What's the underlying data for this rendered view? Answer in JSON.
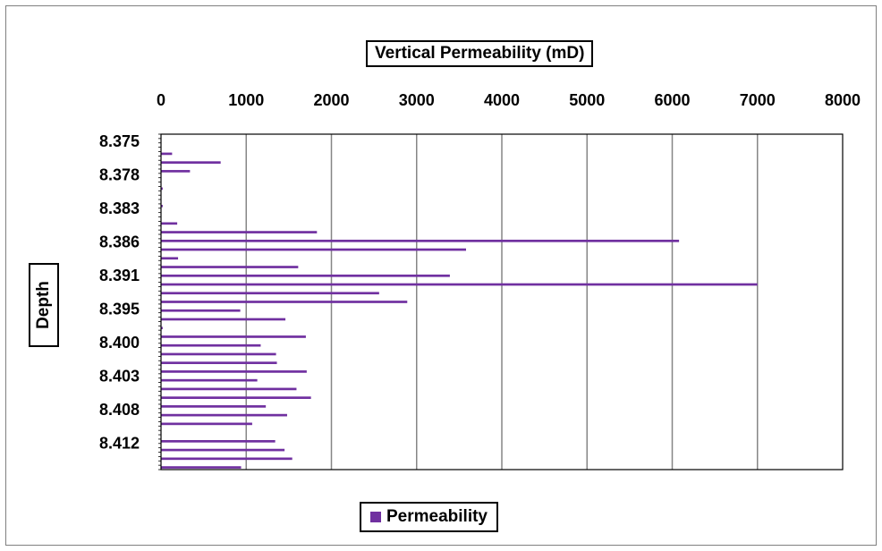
{
  "chart_data": {
    "type": "bar",
    "orientation": "horizontal",
    "xlabel": "Vertical Permeability (mD)",
    "ylabel": "Depth",
    "xlim": [
      0,
      8000
    ],
    "x_ticks": [
      "0",
      "1000",
      "2000",
      "3000",
      "4000",
      "5000",
      "6000",
      "7000",
      "8000"
    ],
    "x_axis_position": "top",
    "y_tick_labels": [
      "8.375",
      "8.378",
      "8.383",
      "8.386",
      "8.391",
      "8.395",
      "8.400",
      "8.403",
      "8.408",
      "8.412"
    ],
    "y_order": "top-to-bottom",
    "grid": {
      "vertical": true,
      "horizontal": false
    },
    "legend": {
      "position": "bottom",
      "entries": [
        "Permeability"
      ]
    },
    "series": [
      {
        "name": "Permeability",
        "color": "#7030a0",
        "values": [
          0,
          0,
          0,
          0,
          130,
          0,
          700,
          0,
          340,
          0,
          0,
          0,
          20,
          0,
          0,
          0,
          20,
          0,
          0,
          0,
          190,
          0,
          1830,
          0,
          6080,
          0,
          3580,
          0,
          200,
          0,
          1610,
          0,
          3390,
          0,
          7000,
          0,
          2560,
          0,
          2890,
          0,
          930,
          0,
          1460,
          0,
          20,
          0,
          1700,
          0,
          1170,
          0,
          1350,
          0,
          1360,
          0,
          1710,
          0,
          1130,
          0,
          1590,
          0,
          1760,
          0,
          1230,
          0,
          1480,
          0,
          1070,
          0,
          0,
          0,
          1340,
          0,
          1450,
          0,
          1540,
          0,
          940
        ]
      }
    ]
  }
}
